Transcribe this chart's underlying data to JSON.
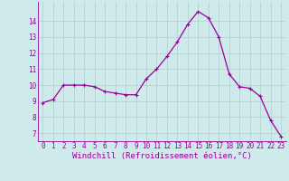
{
  "x": [
    0,
    1,
    2,
    3,
    4,
    5,
    6,
    7,
    8,
    9,
    10,
    11,
    12,
    13,
    14,
    15,
    16,
    17,
    18,
    19,
    20,
    21,
    22,
    23
  ],
  "y": [
    8.9,
    9.1,
    10.0,
    10.0,
    10.0,
    9.9,
    9.6,
    9.5,
    9.4,
    9.4,
    10.4,
    11.0,
    11.8,
    12.7,
    13.8,
    14.6,
    14.2,
    13.0,
    10.7,
    9.9,
    9.8,
    9.3,
    7.8,
    6.8
  ],
  "line_color": "#990099",
  "marker": "+",
  "marker_size": 3,
  "marker_linewidth": 0.8,
  "background_color": "#ceeaea",
  "grid_color": "#b0cccc",
  "xlabel": "Windchill (Refroidissement éolien,°C)",
  "ylim": [
    6.5,
    15.2
  ],
  "xlim": [
    -0.5,
    23.5
  ],
  "yticks": [
    7,
    8,
    9,
    10,
    11,
    12,
    13,
    14
  ],
  "xticks": [
    0,
    1,
    2,
    3,
    4,
    5,
    6,
    7,
    8,
    9,
    10,
    11,
    12,
    13,
    14,
    15,
    16,
    17,
    18,
    19,
    20,
    21,
    22,
    23
  ],
  "tick_label_color": "#990099",
  "tick_label_fontsize": 5.5,
  "xlabel_fontsize": 6.5,
  "spine_color": "#990099",
  "linewidth": 0.9
}
